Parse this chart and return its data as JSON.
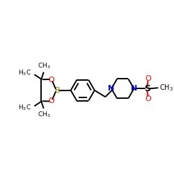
{
  "bg_color": "#ffffff",
  "bond_color": "#000000",
  "nitrogen_color": "#0000cd",
  "oxygen_color": "#ff0000",
  "boron_color": "#808000",
  "figsize": [
    2.5,
    2.5
  ],
  "dpi": 100,
  "xlim": [
    0,
    10
  ],
  "ylim": [
    0,
    10
  ]
}
